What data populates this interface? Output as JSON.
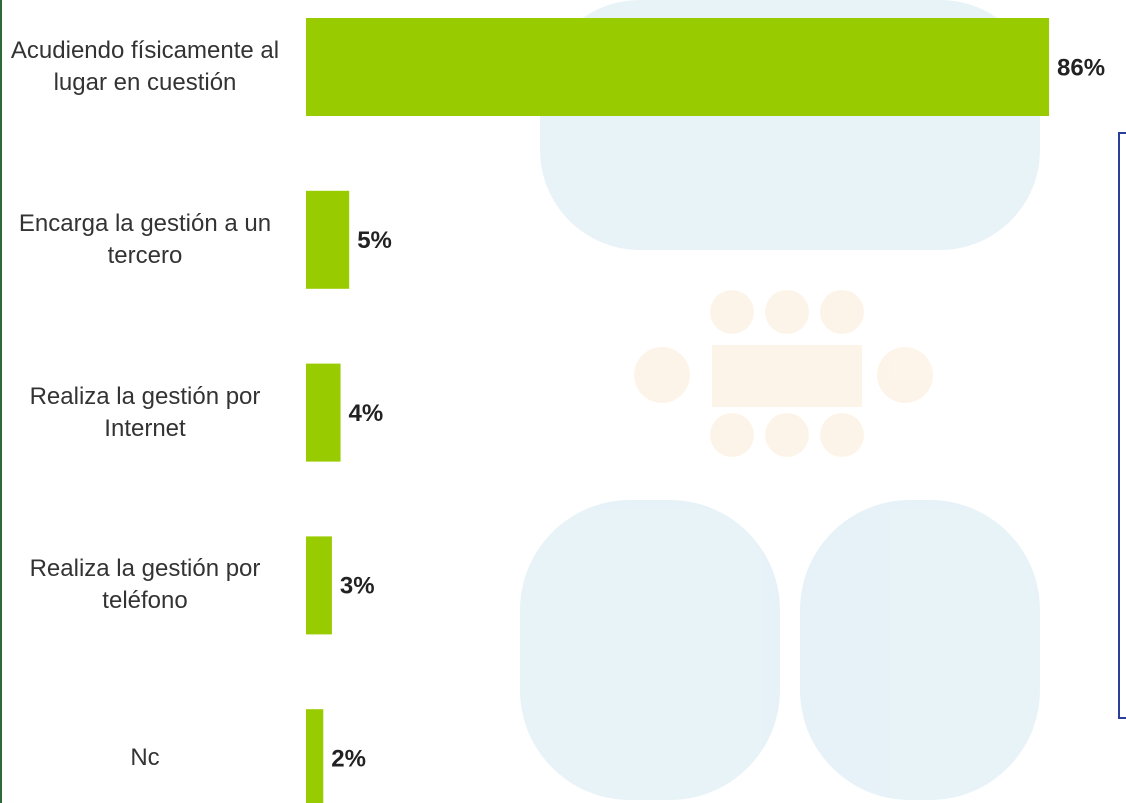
{
  "chart_data": {
    "type": "barh",
    "categories": [
      "Acudiendo físicamente al lugar en cuestión",
      "Encarga la gestión a un tercero",
      "Realiza la gestión por Internet",
      "Realiza la gestión por teléfono",
      "Nc"
    ],
    "values": [
      86,
      5,
      4,
      3,
      2
    ],
    "value_labels": [
      "86%",
      "5%",
      "4%",
      "3%",
      "2%"
    ],
    "color": "#99cc00"
  }
}
